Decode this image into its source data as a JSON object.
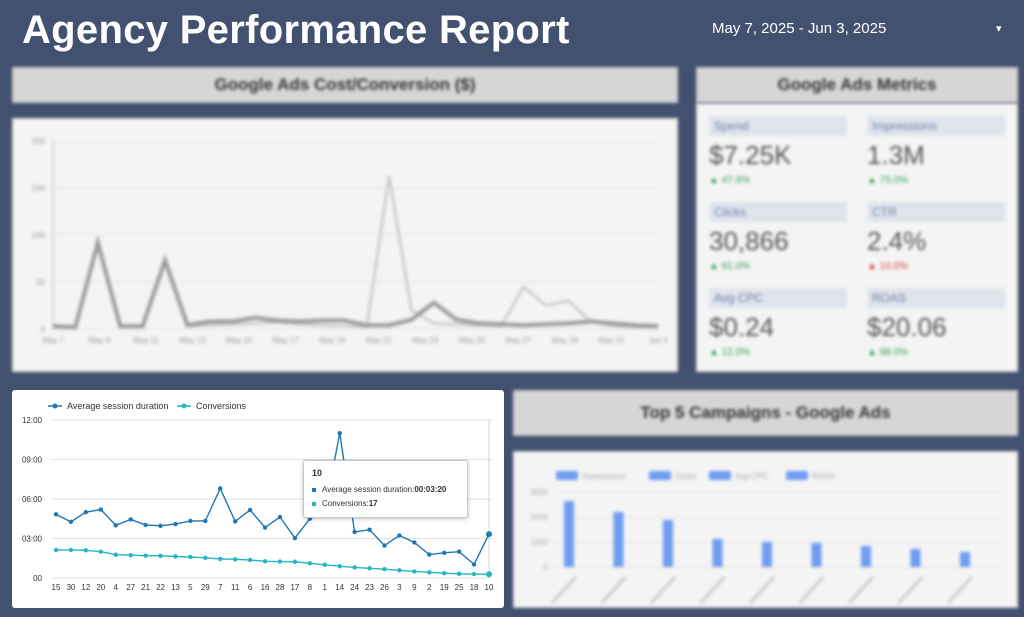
{
  "header": {
    "title": "Agency Performance Report",
    "date_range": "May 7, 2025 - Jun 3, 2025",
    "caret": "▾"
  },
  "cost_panel": {
    "title": "Google Ads  Cost/Conversion ($)",
    "y_ticks": [
      "200",
      "150",
      "100",
      "50",
      "0"
    ],
    "x_ticks": [
      "May 7",
      "May 9",
      "May 11",
      "May 13",
      "May 15",
      "May 17",
      "May 19",
      "May 21",
      "May 23",
      "May 25",
      "May 27",
      "May 29",
      "May 31",
      "Jun 2"
    ]
  },
  "metrics_panel": {
    "title": "Google Ads Metrics",
    "items": [
      {
        "label": "Spend",
        "value": "$7.25K",
        "delta": "▲ 47.9%",
        "delta_color": "#2e9e57"
      },
      {
        "label": "Impressions",
        "value": "1.3M",
        "delta": "▲ 75.0%",
        "delta_color": "#2e9e57"
      },
      {
        "label": "Clicks",
        "value": "30,866",
        "delta": "▲ 91.0%",
        "delta_color": "#2e9e57"
      },
      {
        "label": "CTR",
        "value": "2.4%",
        "delta": "▲ 10.0%",
        "delta_color": "#d93b3b"
      },
      {
        "label": "Avg CPC",
        "value": "$0.24",
        "delta": "▲ 12.0%",
        "delta_color": "#2e9e57"
      },
      {
        "label": "ROAS",
        "value": "$20.06",
        "delta": "▲ 98.0%",
        "delta_color": "#2e9e57"
      }
    ]
  },
  "campaigns_panel": {
    "title": "Top 5 Campaigns - Google Ads",
    "legend": [
      "Impressions",
      "Clicks",
      "Avg CPC",
      "ROAS"
    ],
    "y_ticks": [
      "3000",
      "2000",
      "1000",
      "0"
    ]
  },
  "session_chart": {
    "legend": [
      {
        "name": "Average session duration",
        "color": "#1f77b4"
      },
      {
        "name": "Conversions",
        "color": "#26b5c2"
      }
    ],
    "y_ticks": [
      "12:00",
      "09:00",
      "06:00",
      "03:00",
      "00"
    ],
    "tooltip": {
      "title": "10",
      "row1_label": "Average session duration: ",
      "row1_value": "00:03:20",
      "row2_label": "Conversions: ",
      "row2_value": "17"
    }
  },
  "chart_data": [
    {
      "type": "line",
      "title": "Google Ads  Cost/Conversion ($)",
      "categories": [
        "May 7",
        "May 8",
        "May 9",
        "May 10",
        "May 11",
        "May 12",
        "May 13",
        "May 14",
        "May 15",
        "May 16",
        "May 17",
        "May 18",
        "May 19",
        "May 20",
        "May 21",
        "May 22",
        "May 23",
        "May 24",
        "May 25",
        "May 26",
        "May 27",
        "May 28",
        "May 29",
        "May 30",
        "May 31",
        "Jun 1",
        "Jun 2",
        "Jun 3"
      ],
      "series": [
        {
          "values": [
            2,
            1,
            90,
            2,
            2,
            75,
            3,
            4,
            5,
            6,
            7,
            5,
            4,
            3,
            2,
            163,
            20,
            6,
            5,
            4,
            3,
            45,
            25,
            30,
            8,
            3,
            2,
            2
          ]
        },
        {
          "values": [
            3,
            2,
            92,
            3,
            3,
            73,
            4,
            8,
            8,
            12,
            9,
            8,
            9,
            9,
            4,
            4,
            10,
            28,
            10,
            6,
            5,
            4,
            5,
            6,
            8,
            6,
            4,
            3
          ]
        }
      ],
      "ylim": [
        0,
        200
      ]
    },
    {
      "type": "line",
      "categories": [
        "15",
        "30",
        "12",
        "20",
        "4",
        "27",
        "21",
        "22",
        "13",
        "5",
        "29",
        "7",
        "11",
        "6",
        "16",
        "28",
        "17",
        "8",
        "1",
        "14",
        "24",
        "23",
        "26",
        "3",
        "9",
        "2",
        "19",
        "25",
        "18",
        "10"
      ],
      "series": [
        {
          "name": "Average session duration",
          "values": [
            290,
            256,
            300,
            312,
            240,
            267,
            242,
            238,
            246,
            260,
            260,
            408,
            258,
            310,
            230,
            278,
            182,
            270,
            300,
            660,
            210,
            220,
            148,
            194,
            162,
            107,
            115,
            120,
            62,
            200
          ]
        },
        {
          "name": "Conversions",
          "values": [
            128,
            128,
            126,
            120,
            106,
            104,
            102,
            101,
            98,
            96,
            92,
            87,
            85,
            82,
            76,
            75,
            74,
            67,
            60,
            54,
            48,
            44,
            40,
            35,
            30,
            26,
            22,
            19,
            18,
            17
          ]
        }
      ],
      "y_tick_values_seconds": [
        720,
        540,
        360,
        180,
        0
      ],
      "ylim": [
        0,
        720
      ]
    }
  ]
}
